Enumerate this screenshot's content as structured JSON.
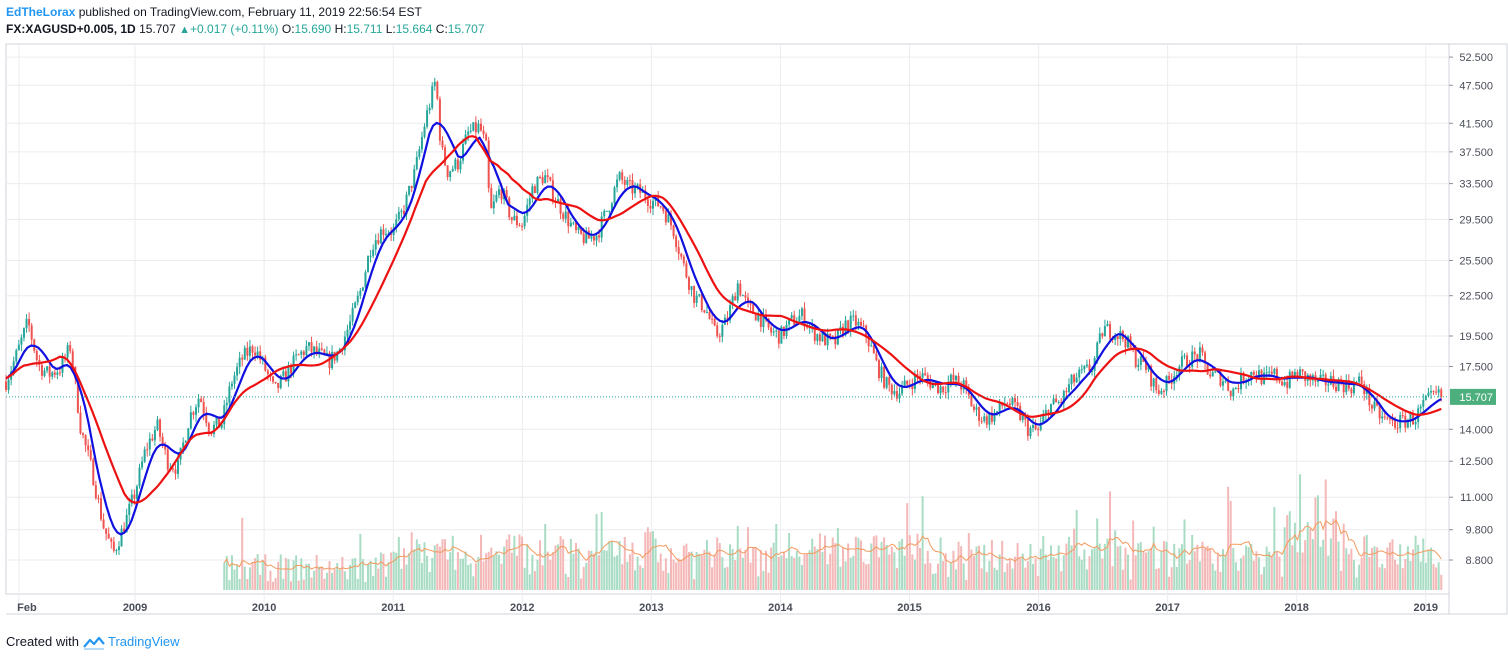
{
  "header": {
    "author": "EdTheLorax",
    "published_text": "published on TradingView.com, February 11, 2019 22:56:54 EST",
    "symbol": "FX:XAGUSD+0.005, 1D",
    "last": "15.707",
    "change": "+0.017 (+0.11%)",
    "open_label": "O:",
    "open": "15.690",
    "high_label": "H:",
    "high": "15.711",
    "low_label": "L:",
    "low": "15.664",
    "close_label": "C:",
    "close": "15.707"
  },
  "footer": {
    "created_with": "Created with",
    "brand": "TradingView"
  },
  "colors": {
    "sma_fast": "#1010e0",
    "sma_slow": "#ee1111",
    "up_candle": "#26a69a",
    "down_candle": "#ef5350",
    "price_label_bg": "#4caf7d",
    "volume_ma": "#f39a5c"
  },
  "chart_data": {
    "type": "candlestick",
    "title": "FX:XAGUSD+0.005, 1D",
    "y_scale": "log",
    "ylim": [
      7.8,
      55
    ],
    "y_ticks": [
      "52.500",
      "47.500",
      "41.500",
      "37.500",
      "33.500",
      "29.500",
      "25.500",
      "22.500",
      "19.500",
      "17.500",
      "15.707",
      "14.000",
      "12.500",
      "11.000",
      "9.800",
      "8.800"
    ],
    "x_ticks": [
      {
        "label": "Feb",
        "x": 2008.1
      },
      {
        "label": "2009",
        "x": 2009.0
      },
      {
        "label": "2010",
        "x": 2010.0
      },
      {
        "label": "2011",
        "x": 2011.0
      },
      {
        "label": "2012",
        "x": 2012.0
      },
      {
        "label": "2013",
        "x": 2013.0
      },
      {
        "label": "2014",
        "x": 2014.0
      },
      {
        "label": "2015",
        "x": 2015.0
      },
      {
        "label": "2016",
        "x": 2016.0
      },
      {
        "label": "2017",
        "x": 2017.0
      },
      {
        "label": "2018",
        "x": 2018.0
      },
      {
        "label": "2019",
        "x": 2019.0
      }
    ],
    "xlim": [
      2008.0,
      2019.18
    ],
    "last_price": 15.707,
    "price_path": [
      [
        2008.0,
        16.6
      ],
      [
        2008.08,
        18.2
      ],
      [
        2008.17,
        20.5
      ],
      [
        2008.25,
        17.6
      ],
      [
        2008.33,
        17.0
      ],
      [
        2008.42,
        17.4
      ],
      [
        2008.5,
        18.8
      ],
      [
        2008.58,
        14.0
      ],
      [
        2008.67,
        12.0
      ],
      [
        2008.75,
        10.0
      ],
      [
        2008.83,
        9.0
      ],
      [
        2008.92,
        10.0
      ],
      [
        2009.0,
        11.2
      ],
      [
        2009.08,
        13.0
      ],
      [
        2009.17,
        14.2
      ],
      [
        2009.25,
        12.5
      ],
      [
        2009.33,
        12.2
      ],
      [
        2009.42,
        14.6
      ],
      [
        2009.5,
        15.8
      ],
      [
        2009.58,
        14.0
      ],
      [
        2009.67,
        14.3
      ],
      [
        2009.75,
        16.6
      ],
      [
        2009.83,
        18.0
      ],
      [
        2009.92,
        18.8
      ],
      [
        2010.0,
        17.5
      ],
      [
        2010.08,
        16.0
      ],
      [
        2010.17,
        17.0
      ],
      [
        2010.25,
        18.0
      ],
      [
        2010.33,
        18.7
      ],
      [
        2010.42,
        18.3
      ],
      [
        2010.5,
        17.8
      ],
      [
        2010.58,
        18.5
      ],
      [
        2010.67,
        20.5
      ],
      [
        2010.75,
        23.0
      ],
      [
        2010.83,
        27.0
      ],
      [
        2010.92,
        28.5
      ],
      [
        2011.0,
        28.3
      ],
      [
        2011.08,
        30.5
      ],
      [
        2011.17,
        35.0
      ],
      [
        2011.25,
        42.0
      ],
      [
        2011.33,
        48.5
      ],
      [
        2011.37,
        38.0
      ],
      [
        2011.42,
        35.0
      ],
      [
        2011.5,
        36.0
      ],
      [
        2011.58,
        40.0
      ],
      [
        2011.67,
        41.0
      ],
      [
        2011.72,
        38.0
      ],
      [
        2011.75,
        30.0
      ],
      [
        2011.83,
        33.0
      ],
      [
        2011.92,
        29.5
      ],
      [
        2012.0,
        29.0
      ],
      [
        2012.08,
        33.0
      ],
      [
        2012.17,
        34.5
      ],
      [
        2012.25,
        32.0
      ],
      [
        2012.33,
        30.0
      ],
      [
        2012.42,
        28.0
      ],
      [
        2012.5,
        27.5
      ],
      [
        2012.58,
        28.0
      ],
      [
        2012.67,
        31.0
      ],
      [
        2012.75,
        34.2
      ],
      [
        2012.83,
        33.0
      ],
      [
        2012.92,
        32.5
      ],
      [
        2013.0,
        31.5
      ],
      [
        2013.08,
        31.0
      ],
      [
        2013.17,
        28.5
      ],
      [
        2013.25,
        25.0
      ],
      [
        2013.33,
        22.5
      ],
      [
        2013.42,
        21.5
      ],
      [
        2013.5,
        19.5
      ],
      [
        2013.58,
        20.5
      ],
      [
        2013.67,
        23.5
      ],
      [
        2013.75,
        21.5
      ],
      [
        2013.83,
        21.0
      ],
      [
        2013.92,
        19.8
      ],
      [
        2014.0,
        19.5
      ],
      [
        2014.08,
        20.5
      ],
      [
        2014.17,
        21.0
      ],
      [
        2014.25,
        19.8
      ],
      [
        2014.33,
        19.3
      ],
      [
        2014.42,
        19.0
      ],
      [
        2014.5,
        20.3
      ],
      [
        2014.58,
        20.5
      ],
      [
        2014.67,
        19.5
      ],
      [
        2014.75,
        17.5
      ],
      [
        2014.83,
        16.3
      ],
      [
        2014.92,
        16.0
      ],
      [
        2015.0,
        16.5
      ],
      [
        2015.08,
        17.0
      ],
      [
        2015.17,
        16.5
      ],
      [
        2015.25,
        16.2
      ],
      [
        2015.33,
        16.7
      ],
      [
        2015.42,
        16.3
      ],
      [
        2015.5,
        15.0
      ],
      [
        2015.58,
        14.5
      ],
      [
        2015.67,
        14.8
      ],
      [
        2015.75,
        15.5
      ],
      [
        2015.83,
        15.0
      ],
      [
        2015.92,
        14.0
      ],
      [
        2016.0,
        13.9
      ],
      [
        2016.08,
        15.2
      ],
      [
        2016.17,
        15.4
      ],
      [
        2016.25,
        16.5
      ],
      [
        2016.33,
        17.0
      ],
      [
        2016.42,
        17.5
      ],
      [
        2016.5,
        20.0
      ],
      [
        2016.58,
        19.8
      ],
      [
        2016.67,
        19.3
      ],
      [
        2016.75,
        18.0
      ],
      [
        2016.83,
        17.5
      ],
      [
        2016.92,
        16.0
      ],
      [
        2017.0,
        16.5
      ],
      [
        2017.08,
        17.5
      ],
      [
        2017.17,
        18.0
      ],
      [
        2017.25,
        18.2
      ],
      [
        2017.33,
        17.0
      ],
      [
        2017.42,
        16.8
      ],
      [
        2017.5,
        16.0
      ],
      [
        2017.58,
        16.8
      ],
      [
        2017.67,
        17.2
      ],
      [
        2017.75,
        16.7
      ],
      [
        2017.83,
        17.0
      ],
      [
        2017.92,
        16.5
      ],
      [
        2018.0,
        17.1
      ],
      [
        2018.08,
        16.8
      ],
      [
        2018.17,
        16.5
      ],
      [
        2018.25,
        16.6
      ],
      [
        2018.33,
        16.5
      ],
      [
        2018.42,
        16.3
      ],
      [
        2018.5,
        16.6
      ],
      [
        2018.58,
        15.2
      ],
      [
        2018.67,
        14.5
      ],
      [
        2018.75,
        14.3
      ],
      [
        2018.83,
        14.4
      ],
      [
        2018.92,
        14.6
      ],
      [
        2019.0,
        15.4
      ],
      [
        2019.08,
        15.8
      ],
      [
        2019.12,
        15.7
      ]
    ]
  }
}
